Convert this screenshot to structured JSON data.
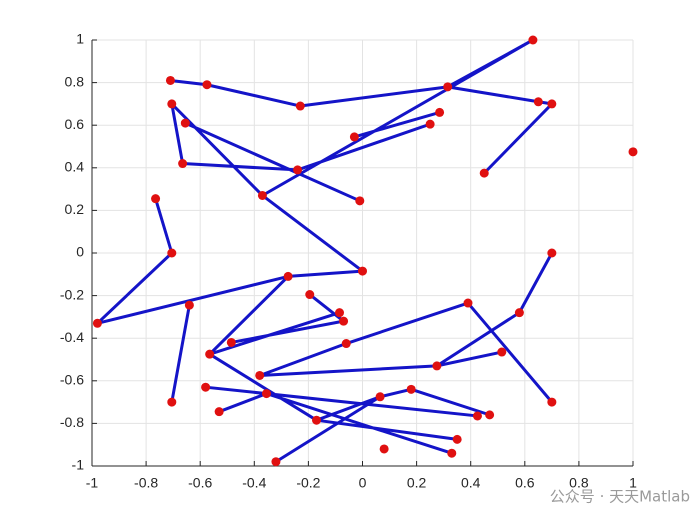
{
  "chart_data": {
    "type": "scatter",
    "series": [
      {
        "color": "#1414c8",
        "line": true,
        "marker": false,
        "x": [
          -0.71,
          -0.575,
          null,
          -0.575,
          -0.23,
          null,
          -0.23,
          0.315,
          null,
          0.315,
          0.63,
          null,
          0.315,
          0.65,
          null,
          0.65,
          0.7,
          null,
          0.7,
          0.45,
          null,
          0.63,
          -0.37,
          null,
          0.285,
          -0.03,
          null,
          0.25,
          -0.24,
          null,
          -0.705,
          -0.665,
          null,
          -0.665,
          -0.24,
          null,
          -0.705,
          -0.37,
          null,
          -0.37,
          0.0,
          null,
          -0.655,
          -0.01,
          null,
          -0.765,
          -0.705,
          null,
          -0.705,
          -0.98,
          null,
          -0.98,
          -0.275,
          null,
          -0.64,
          -0.705,
          null,
          -0.275,
          0.0,
          null,
          -0.275,
          -0.565,
          null,
          -0.565,
          -0.085,
          null,
          -0.485,
          -0.07,
          null,
          -0.195,
          -0.07,
          null,
          -0.565,
          -0.17,
          null,
          -0.17,
          0.35,
          null,
          -0.58,
          0.425,
          null,
          -0.355,
          -0.53,
          null,
          -0.355,
          0.33,
          null,
          -0.38,
          -0.06,
          null,
          -0.06,
          0.39,
          null,
          -0.38,
          0.275,
          null,
          0.275,
          0.515,
          null,
          0.275,
          0.58,
          null,
          0.39,
          0.7,
          null,
          0.58,
          0.7,
          null,
          -0.32,
          0.065,
          null,
          0.065,
          0.18,
          null,
          0.18,
          0.47,
          null,
          0.065,
          -0.17
        ],
        "y": [
          0.81,
          0.79,
          null,
          0.79,
          0.69,
          null,
          0.69,
          0.78,
          null,
          0.78,
          1.0,
          null,
          0.78,
          0.71,
          null,
          0.71,
          0.7,
          null,
          0.7,
          0.375,
          null,
          1.0,
          0.27,
          null,
          0.66,
          0.545,
          null,
          0.605,
          0.39,
          null,
          0.7,
          0.42,
          null,
          0.42,
          0.39,
          null,
          0.7,
          0.27,
          null,
          0.27,
          -0.085,
          null,
          0.61,
          0.245,
          null,
          0.255,
          0,
          null,
          0,
          -0.33,
          null,
          -0.33,
          -0.11,
          null,
          -0.245,
          -0.7,
          null,
          -0.11,
          -0.085,
          null,
          -0.11,
          -0.475,
          null,
          -0.475,
          -0.28,
          null,
          -0.42,
          -0.32,
          null,
          -0.195,
          -0.32,
          null,
          -0.475,
          -0.785,
          null,
          -0.785,
          -0.875,
          null,
          -0.63,
          -0.765,
          null,
          -0.66,
          -0.745,
          null,
          -0.66,
          -0.94,
          null,
          -0.575,
          -0.425,
          null,
          -0.425,
          -0.235,
          null,
          -0.575,
          -0.53,
          null,
          -0.53,
          -0.465,
          null,
          -0.53,
          -0.28,
          null,
          -0.235,
          -0.7,
          null,
          -0.28,
          0,
          null,
          -0.98,
          -0.675,
          null,
          -0.675,
          -0.64,
          null,
          -0.64,
          -0.76,
          null,
          -0.675,
          -0.785
        ]
      },
      {
        "color": "#e01010",
        "line": false,
        "marker": true,
        "x": [
          0.63,
          -0.71,
          -0.575,
          0.315,
          -0.23,
          -0.705,
          0.65,
          0.7,
          -0.655,
          0.285,
          0.25,
          -0.03,
          1.0,
          -0.665,
          -0.24,
          0.45,
          -0.765,
          -0.37,
          -0.01,
          -0.705,
          0.7,
          0.0,
          -0.275,
          -0.195,
          -0.98,
          -0.64,
          -0.085,
          -0.07,
          0.39,
          0.58,
          -0.485,
          -0.565,
          -0.06,
          0.515,
          0.275,
          -0.38,
          -0.355,
          -0.58,
          -0.705,
          0.18,
          0.065,
          0.7,
          -0.53,
          -0.17,
          0.47,
          0.425,
          0.35,
          0.08,
          0.33,
          -0.32
        ],
        "y": [
          1.0,
          0.81,
          0.79,
          0.78,
          0.69,
          0.7,
          0.71,
          0.7,
          0.61,
          0.66,
          0.605,
          0.545,
          0.475,
          0.42,
          0.39,
          0.375,
          0.255,
          0.27,
          0.245,
          0,
          0,
          -0.085,
          -0.11,
          -0.195,
          -0.33,
          -0.245,
          -0.28,
          -0.32,
          -0.235,
          -0.28,
          -0.42,
          -0.475,
          -0.425,
          -0.465,
          -0.53,
          -0.575,
          -0.66,
          -0.63,
          -0.7,
          -0.64,
          -0.675,
          -0.7,
          -0.745,
          -0.785,
          -0.76,
          -0.765,
          -0.875,
          -0.92,
          -0.94,
          -0.98
        ]
      }
    ],
    "xlim": [
      -1,
      1
    ],
    "ylim": [
      -1,
      1
    ],
    "xticks": [
      -1,
      -0.8,
      -0.6,
      -0.4,
      -0.2,
      0,
      0.2,
      0.4,
      0.6,
      0.8,
      1
    ],
    "yticks": [
      -1,
      -0.8,
      -0.6,
      -0.4,
      -0.2,
      0,
      0.2,
      0.4,
      0.6,
      0.8,
      1
    ],
    "grid": true,
    "watermark": "公众号 · 天天Matlab"
  }
}
